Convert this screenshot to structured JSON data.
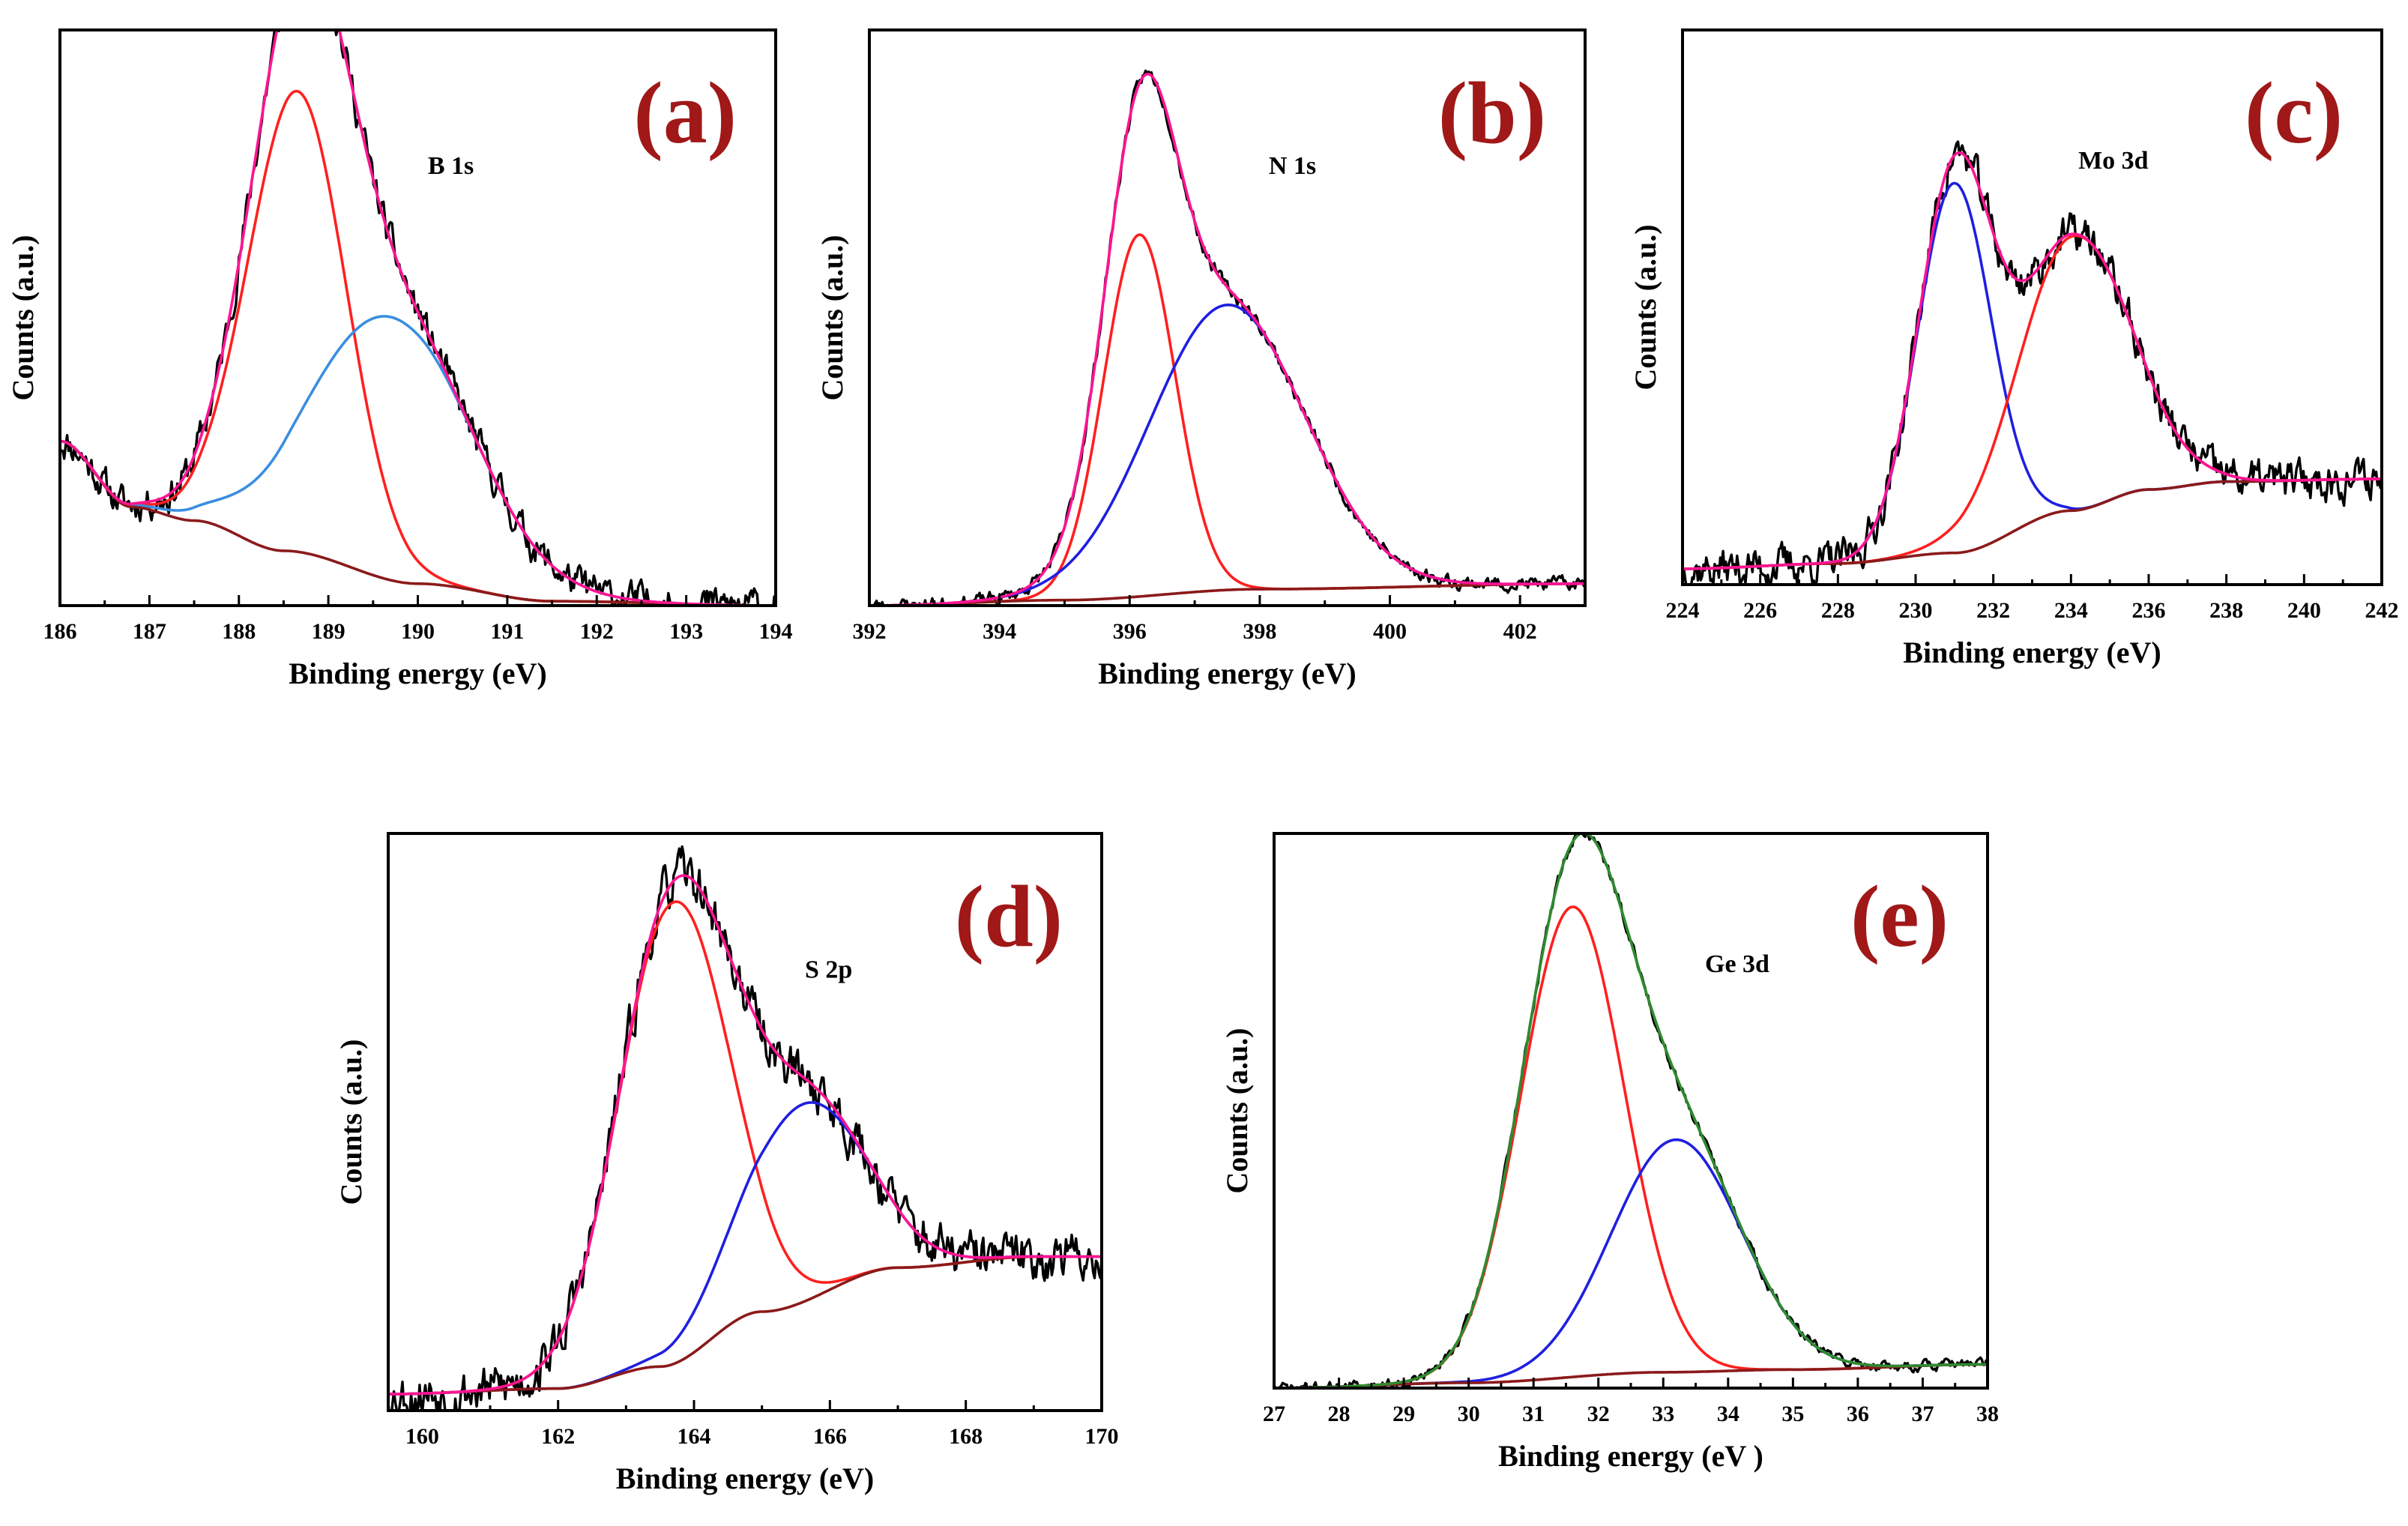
{
  "chart_data": [
    {
      "id": "a",
      "type": "line",
      "panel_label": "(a)",
      "annotation": "B 1s",
      "xlabel": "Binding energy (eV)",
      "ylabel": "Counts (a.u.)",
      "xlim": [
        186,
        194
      ],
      "ylim": [
        0,
        1.05
      ],
      "xticks": [
        186,
        187,
        188,
        189,
        190,
        191,
        192,
        193,
        194
      ],
      "baseline": {
        "points": [
          [
            186,
            0.3
          ],
          [
            186.8,
            0.18
          ],
          [
            187.5,
            0.155
          ],
          [
            188.5,
            0.1
          ],
          [
            190,
            0.04
          ],
          [
            191.5,
            0.008
          ],
          [
            194,
            0
          ]
        ]
      },
      "peaks": [
        {
          "center": 188.65,
          "sigma": 0.55,
          "amplitude": 0.84
        },
        {
          "center": 189.7,
          "sigma": 0.9,
          "amplitude": 0.48
        }
      ],
      "noise": {
        "amp": 0.025,
        "seed": 11
      },
      "series": [
        {
          "name": "experimental",
          "role": "data",
          "color": "#000000"
        },
        {
          "name": "component 1",
          "role": "peak",
          "peak": 0,
          "color": "#ff1f1f"
        },
        {
          "name": "component 2",
          "role": "peak",
          "peak": 1,
          "color": "#3a8ee0"
        },
        {
          "name": "background",
          "role": "baseline",
          "color": "#8b1a1a"
        },
        {
          "name": "envelope",
          "role": "envelope",
          "color": "#ff1493"
        }
      ]
    },
    {
      "id": "b",
      "type": "line",
      "panel_label": "(b)",
      "annotation": "N 1s",
      "xlabel": "Binding energy (eV)",
      "ylabel": "Counts (a.u.)",
      "xlim": [
        392,
        403
      ],
      "ylim": [
        0,
        1.05
      ],
      "xticks": [
        392,
        394,
        396,
        398,
        400,
        402
      ],
      "baseline": {
        "points": [
          [
            392,
            0
          ],
          [
            395,
            0.01
          ],
          [
            398,
            0.03
          ],
          [
            403,
            0.04
          ]
        ]
      },
      "peaks": [
        {
          "center": 396.15,
          "sigma": 0.55,
          "amplitude": 0.66
        },
        {
          "center": 397.5,
          "sigma": 1.2,
          "amplitude": 0.52
        }
      ],
      "noise": {
        "amp": 0.01,
        "seed": 23
      },
      "series": [
        {
          "name": "experimental",
          "role": "data",
          "color": "#000000"
        },
        {
          "name": "component 1",
          "role": "peak",
          "peak": 0,
          "color": "#ff1f1f"
        },
        {
          "name": "component 2",
          "role": "peak",
          "peak": 1,
          "color": "#1f1fe0"
        },
        {
          "name": "background",
          "role": "baseline",
          "color": "#8b1a1a"
        },
        {
          "name": "envelope",
          "role": "envelope",
          "color": "#ff1493"
        }
      ]
    },
    {
      "id": "c",
      "type": "line",
      "panel_label": "(c)",
      "annotation": "Mo 3d",
      "xlabel": "Binding energy (eV)",
      "ylabel": "Counts (a.u.)",
      "xlim": [
        224,
        242
      ],
      "ylim": [
        0,
        1.05
      ],
      "xticks": [
        224,
        226,
        228,
        230,
        232,
        234,
        236,
        238,
        240,
        242
      ],
      "baseline": {
        "points": [
          [
            224,
            0.03
          ],
          [
            228,
            0.04
          ],
          [
            231,
            0.06
          ],
          [
            234,
            0.14
          ],
          [
            236,
            0.18
          ],
          [
            238,
            0.195
          ],
          [
            242,
            0.2
          ]
        ]
      },
      "peaks": [
        {
          "center": 231.0,
          "sigma": 0.95,
          "amplitude": 0.7
        },
        {
          "center": 234.1,
          "sigma": 1.45,
          "amplitude": 0.52
        }
      ],
      "noise": {
        "amp": 0.03,
        "seed": 37
      },
      "series": [
        {
          "name": "experimental",
          "role": "data",
          "color": "#000000"
        },
        {
          "name": "component 1",
          "role": "peak",
          "peak": 0,
          "color": "#1f1fe0"
        },
        {
          "name": "component 2",
          "role": "peak",
          "peak": 1,
          "color": "#ff1f1f"
        },
        {
          "name": "background",
          "role": "baseline",
          "color": "#8b1a1a"
        },
        {
          "name": "envelope",
          "role": "envelope",
          "color": "#ff1493"
        }
      ]
    },
    {
      "id": "d",
      "type": "line",
      "panel_label": "(d)",
      "annotation": "S 2p",
      "xlabel": "Binding energy (eV)",
      "ylabel": "Counts (a.u.)",
      "xlim": [
        159.5,
        170
      ],
      "ylim": [
        0,
        1.05
      ],
      "xticks": [
        160,
        162,
        164,
        166,
        168,
        170
      ],
      "baseline": {
        "points": [
          [
            159.5,
            0.03
          ],
          [
            162,
            0.04
          ],
          [
            163.5,
            0.08
          ],
          [
            165,
            0.18
          ],
          [
            167,
            0.26
          ],
          [
            169,
            0.28
          ],
          [
            170,
            0.28
          ]
        ]
      },
      "peaks": [
        {
          "center": 163.7,
          "sigma": 0.8,
          "amplitude": 0.84
        },
        {
          "center": 165.6,
          "sigma": 0.9,
          "amplitude": 0.36
        }
      ],
      "noise": {
        "amp": 0.035,
        "seed": 53
      },
      "series": [
        {
          "name": "experimental",
          "role": "data",
          "color": "#000000"
        },
        {
          "name": "component 1",
          "role": "peak",
          "peak": 0,
          "color": "#ff1f1f"
        },
        {
          "name": "component 2",
          "role": "peak",
          "peak": 1,
          "color": "#1f1fe0"
        },
        {
          "name": "background",
          "role": "baseline",
          "color": "#8b1a1a"
        },
        {
          "name": "envelope",
          "role": "envelope",
          "color": "#ff1493"
        }
      ]
    },
    {
      "id": "e",
      "type": "line",
      "panel_label": "(e)",
      "annotation": "Ge 3d",
      "xlabel": "Binding energy (eV )",
      "ylabel": "Counts (a.u.)",
      "xlim": [
        27,
        38
      ],
      "ylim": [
        0,
        1.05
      ],
      "xticks": [
        27,
        28,
        29,
        30,
        31,
        32,
        33,
        34,
        35,
        36,
        37,
        38
      ],
      "baseline": {
        "points": [
          [
            27,
            0
          ],
          [
            30,
            0.01
          ],
          [
            33,
            0.03
          ],
          [
            35,
            0.035
          ],
          [
            38,
            0.045
          ]
        ]
      },
      "peaks": [
        {
          "center": 31.6,
          "sigma": 0.8,
          "amplitude": 0.89
        },
        {
          "center": 33.2,
          "sigma": 1.0,
          "amplitude": 0.44
        }
      ],
      "noise": {
        "amp": 0.008,
        "seed": 71
      },
      "series": [
        {
          "name": "experimental",
          "role": "data",
          "color": "#000000"
        },
        {
          "name": "component 1",
          "role": "peak",
          "peak": 0,
          "color": "#ff1f1f"
        },
        {
          "name": "component 2",
          "role": "peak",
          "peak": 1,
          "color": "#1f1fe0"
        },
        {
          "name": "background",
          "role": "baseline",
          "color": "#8b1a1a"
        },
        {
          "name": "envelope",
          "role": "envelope",
          "color": "#2e8b2e"
        }
      ]
    }
  ]
}
